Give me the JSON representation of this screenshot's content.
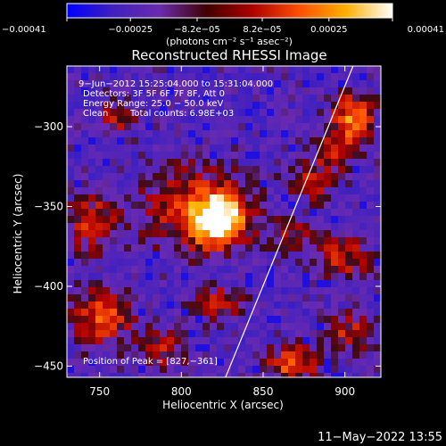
{
  "chart_data": {
    "type": "heatmap",
    "title": "Reconstructed RHESSI Image",
    "xlabel": "Heliocentric X (arcsec)",
    "ylabel": "Heliocentric Y (arcsec)",
    "xlim": [
      730,
      922
    ],
    "ylim": [
      -457,
      -262
    ],
    "x_ticks": [
      750,
      800,
      850,
      900
    ],
    "x_tick_labels": [
      "750",
      "800",
      "850",
      "900"
    ],
    "y_ticks": [
      -300,
      -350,
      -400,
      -450
    ],
    "y_tick_labels": [
      "−300",
      "−350",
      "−400",
      "−450"
    ],
    "colorbar": {
      "range": [
        -0.00041,
        0.00041
      ],
      "tick_labels": [
        "−0.00041",
        "−0.00025",
        "−8.2e−05",
        "8.2e−05",
        "0.00025",
        "0.00041"
      ],
      "unit": "(photons cm⁻² s⁻¹ asec⁻²)",
      "colors": [
        "#0000ff",
        "#4020c0",
        "#6a2ab0",
        "#400000",
        "#b00000",
        "#ff5000",
        "#ffb000",
        "#ffffff"
      ]
    },
    "annotations": {
      "time_range": "9−Jun−2012 15:25:04.000 to 15:31:04.000",
      "detectors": "Detectors: 3F 5F 6F 7F 8F, Att 0",
      "energy": "Energy Range: 25.0 − 50.0 keV",
      "method_label": "Clean",
      "counts": "Total counts: 6.98E+03",
      "peak": "Position of Peak = [827,−361]"
    },
    "peak": [
      827,
      -361
    ],
    "sources": [
      {
        "x": 823,
        "y": -358,
        "amp": 1.0,
        "sx": 11,
        "sy": 11
      },
      {
        "x": 808,
        "y": -352,
        "amp": 0.45,
        "sx": 22,
        "sy": 18
      },
      {
        "x": 905,
        "y": -295,
        "amp": 0.7,
        "sx": 8,
        "sy": 10
      },
      {
        "x": 893,
        "y": -315,
        "amp": 0.45,
        "sx": 8,
        "sy": 8
      },
      {
        "x": 880,
        "y": -335,
        "amp": 0.35,
        "sx": 9,
        "sy": 8
      },
      {
        "x": 898,
        "y": -382,
        "amp": 0.4,
        "sx": 12,
        "sy": 9
      },
      {
        "x": 870,
        "y": -368,
        "amp": 0.3,
        "sx": 10,
        "sy": 8
      },
      {
        "x": 868,
        "y": -448,
        "amp": 0.6,
        "sx": 10,
        "sy": 7
      },
      {
        "x": 903,
        "y": -430,
        "amp": 0.4,
        "sx": 10,
        "sy": 8
      },
      {
        "x": 745,
        "y": -360,
        "amp": 0.45,
        "sx": 10,
        "sy": 12
      },
      {
        "x": 752,
        "y": -420,
        "amp": 0.55,
        "sx": 12,
        "sy": 12
      },
      {
        "x": 790,
        "y": -438,
        "amp": 0.35,
        "sx": 9,
        "sy": 9
      },
      {
        "x": 760,
        "y": -295,
        "amp": 0.3,
        "sx": 8,
        "sy": 8
      },
      {
        "x": 823,
        "y": -410,
        "amp": 0.35,
        "sx": 10,
        "sy": 7
      }
    ],
    "limb_line": [
      [
        905,
        -262
      ],
      [
        827,
        -457
      ]
    ]
  },
  "footer": {
    "date": "11−May−2022 13:55"
  }
}
